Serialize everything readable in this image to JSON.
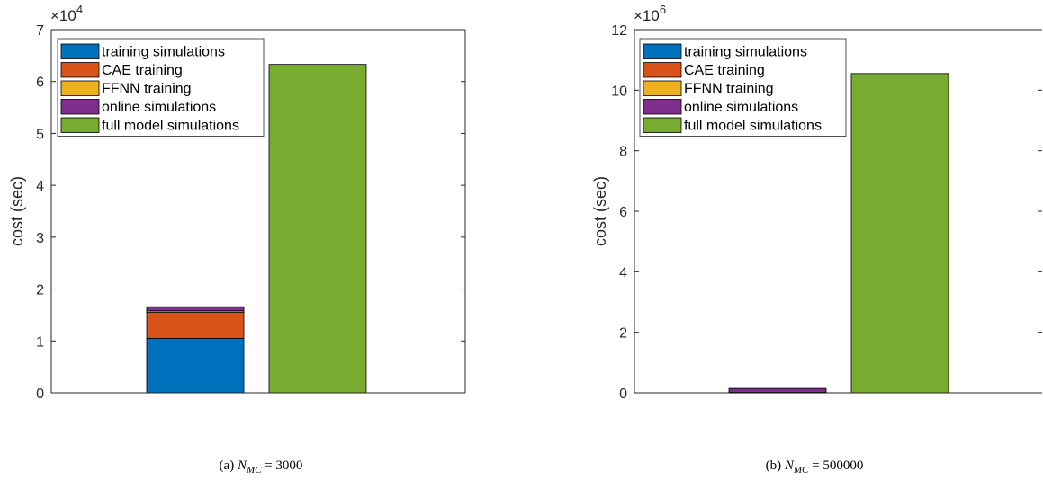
{
  "colors": {
    "training_simulations": "#0072BD",
    "cae_training": "#D95319",
    "ffnn_training": "#EDB120",
    "online_simulations": "#7E2F8E",
    "full_model_simulations": "#77AC30"
  },
  "chart_data": [
    {
      "type": "bar",
      "stacked": true,
      "categories": [
        "",
        ""
      ],
      "series": [
        {
          "name": "training simulations",
          "values": [
            10500,
            0
          ]
        },
        {
          "name": "CAE training",
          "values": [
            5000,
            0
          ]
        },
        {
          "name": "FFNN training",
          "values": [
            300,
            0
          ]
        },
        {
          "name": "online simulations",
          "values": [
            800,
            0
          ]
        },
        {
          "name": "full model simulations",
          "values": [
            0,
            63300
          ]
        }
      ],
      "ylabel": "cost (sec)",
      "ylim": [
        0,
        70000
      ],
      "yticks": [
        "0",
        "1",
        "2",
        "3",
        "4",
        "5",
        "6",
        "7"
      ],
      "multiplier": {
        "base": "×10",
        "exp": "4"
      },
      "legend": "top-left",
      "grid": false,
      "caption": {
        "prefix": "(a) ",
        "var": "N",
        "sub": "MC",
        "value": " = 3000"
      }
    },
    {
      "type": "bar",
      "stacked": true,
      "categories": [
        "",
        ""
      ],
      "series": [
        {
          "name": "training simulations",
          "values": [
            10500,
            0
          ]
        },
        {
          "name": "CAE training",
          "values": [
            5000,
            0
          ]
        },
        {
          "name": "FFNN training",
          "values": [
            300,
            0
          ]
        },
        {
          "name": "online simulations",
          "values": [
            130000,
            0
          ]
        },
        {
          "name": "full model simulations",
          "values": [
            0,
            10550000
          ]
        }
      ],
      "ylabel": "cost (sec)",
      "ylim": [
        0,
        12000000
      ],
      "yticks": [
        "0",
        "2",
        "4",
        "6",
        "8",
        "10",
        "12"
      ],
      "multiplier": {
        "base": "×10",
        "exp": "6"
      },
      "legend": "top-left",
      "grid": false,
      "caption": {
        "prefix": "(b) ",
        "var": "N",
        "sub": "MC",
        "value": " = 500000"
      }
    }
  ]
}
